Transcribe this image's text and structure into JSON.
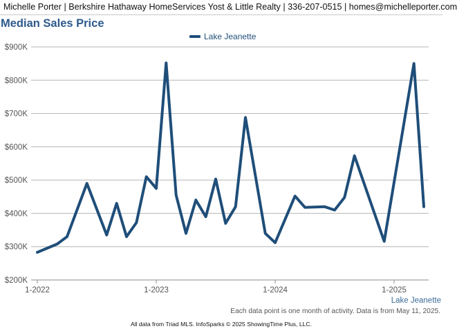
{
  "header": {
    "text": "Michelle Porter | Berkshire Hathaway HomeServices Yost & Little Realty | 336-207-0515 | homes@michelleporter.com"
  },
  "page_title": "Median Sales Price",
  "series_tag": "Lake Jeanette",
  "footnote": "Each data point is one month of activity. Data is from May 11, 2025.",
  "source": "All data from Triad MLS. InfoSparks © 2025 ShowingTime Plus, LLC.",
  "colors": {
    "series": "#1f4e79",
    "grid": "#b4b4b4",
    "title": "#2d5a8c"
  },
  "chart_data": {
    "type": "line",
    "title": "Median Sales Price",
    "xlabel": "",
    "ylabel": "",
    "ylim": [
      200000,
      900000
    ],
    "xlim": [
      "2022-01",
      "2025-04"
    ],
    "grid": true,
    "legend_position": "top",
    "y_ticks": [
      {
        "value": 900000,
        "label": "$900K"
      },
      {
        "value": 800000,
        "label": "$800K"
      },
      {
        "value": 700000,
        "label": "$700K"
      },
      {
        "value": 600000,
        "label": "$600K"
      },
      {
        "value": 500000,
        "label": "$500K"
      },
      {
        "value": 400000,
        "label": "$400K"
      },
      {
        "value": 300000,
        "label": "$300K"
      },
      {
        "value": 200000,
        "label": "$200K"
      }
    ],
    "x_ticks": [
      {
        "value": "2022-01",
        "label": "1-2022"
      },
      {
        "value": "2023-01",
        "label": "1-2023"
      },
      {
        "value": "2024-01",
        "label": "1-2024"
      },
      {
        "value": "2025-01",
        "label": "1-2025"
      }
    ],
    "series": [
      {
        "name": "Lake Jeanette",
        "color": "#1f4e79",
        "points": [
          {
            "x": "2022-01",
            "y": 283000
          },
          {
            "x": "2022-03",
            "y": 308000
          },
          {
            "x": "2022-04",
            "y": 330000
          },
          {
            "x": "2022-06",
            "y": 490000
          },
          {
            "x": "2022-08",
            "y": 335000
          },
          {
            "x": "2022-09",
            "y": 430000
          },
          {
            "x": "2022-10",
            "y": 330000
          },
          {
            "x": "2022-11",
            "y": 372000
          },
          {
            "x": "2022-12",
            "y": 510000
          },
          {
            "x": "2023-01",
            "y": 475000
          },
          {
            "x": "2023-02",
            "y": 852000
          },
          {
            "x": "2023-03",
            "y": 455000
          },
          {
            "x": "2023-04",
            "y": 340000
          },
          {
            "x": "2023-05",
            "y": 440000
          },
          {
            "x": "2023-06",
            "y": 390000
          },
          {
            "x": "2023-07",
            "y": 503000
          },
          {
            "x": "2023-08",
            "y": 370000
          },
          {
            "x": "2023-09",
            "y": 420000
          },
          {
            "x": "2023-10",
            "y": 688000
          },
          {
            "x": "2023-12",
            "y": 340000
          },
          {
            "x": "2024-01",
            "y": 312000
          },
          {
            "x": "2024-03",
            "y": 452000
          },
          {
            "x": "2024-04",
            "y": 418000
          },
          {
            "x": "2024-06",
            "y": 420000
          },
          {
            "x": "2024-07",
            "y": 410000
          },
          {
            "x": "2024-08",
            "y": 448000
          },
          {
            "x": "2024-09",
            "y": 573000
          },
          {
            "x": "2024-12",
            "y": 316000
          },
          {
            "x": "2025-03",
            "y": 850000
          },
          {
            "x": "2025-04",
            "y": 420000
          }
        ]
      }
    ]
  }
}
